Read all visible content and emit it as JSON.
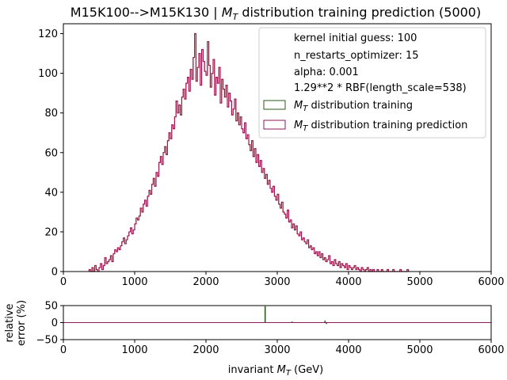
{
  "chart_data": [
    {
      "type": "histogram",
      "title_main": "M15K100-->M15K130 | ",
      "title_var": "M",
      "title_sub": "T",
      "title_tail": " distribution training prediction (5000)",
      "xlim": [
        0,
        6000
      ],
      "ylim": [
        0,
        125
      ],
      "xticks": [
        "0",
        "1000",
        "2000",
        "3000",
        "4000",
        "5000",
        "6000"
      ],
      "yticks": [
        "0",
        "20",
        "40",
        "60",
        "80",
        "100",
        "120"
      ],
      "bin_width": 20,
      "x_start": 360,
      "counts": [
        1,
        0,
        2,
        0,
        3,
        1,
        0,
        2,
        4,
        1,
        3,
        7,
        4,
        5,
        6,
        8,
        5,
        9,
        11,
        10,
        12,
        11,
        13,
        15,
        17,
        14,
        16,
        18,
        20,
        22,
        19,
        21,
        24,
        27,
        26,
        28,
        32,
        30,
        34,
        36,
        33,
        38,
        41,
        39,
        44,
        47,
        43,
        50,
        48,
        55,
        58,
        54,
        60,
        63,
        59,
        66,
        70,
        67,
        74,
        72,
        78,
        86,
        80,
        84,
        79,
        88,
        92,
        87,
        95,
        98,
        91,
        102,
        97,
        108,
        120,
        96,
        103,
        110,
        94,
        112,
        106,
        101,
        99,
        116,
        104,
        93,
        100,
        107,
        89,
        98,
        95,
        103,
        85,
        97,
        92,
        88,
        94,
        83,
        90,
        86,
        79,
        82,
        87,
        76,
        80,
        74,
        78,
        72,
        70,
        75,
        67,
        69,
        64,
        61,
        66,
        58,
        62,
        55,
        59,
        53,
        56,
        50,
        52,
        47,
        49,
        44,
        46,
        42,
        40,
        43,
        38,
        36,
        39,
        34,
        32,
        35,
        30,
        29,
        27,
        31,
        25,
        26,
        22,
        24,
        21,
        23,
        19,
        18,
        20,
        16,
        17,
        15,
        14,
        16,
        12,
        13,
        11,
        12,
        9,
        10,
        8,
        10,
        7,
        9,
        6,
        7,
        5,
        6,
        8,
        4,
        5,
        3,
        6,
        4,
        3,
        5,
        2,
        4,
        3,
        2,
        4,
        1,
        3,
        2,
        1,
        2,
        3,
        1,
        2,
        1,
        0,
        2,
        1,
        0,
        1,
        2,
        0,
        1,
        0,
        1,
        0,
        0,
        1,
        0,
        0,
        1,
        0,
        0,
        0,
        1,
        0,
        0,
        0,
        1,
        0,
        0,
        0,
        0,
        1,
        0,
        0,
        0,
        0,
        1
      ],
      "series": [
        {
          "name_var": "M",
          "name_sub": "T",
          "name_tail": " distribution training",
          "color": "#2f5a1e"
        },
        {
          "name_var": "M",
          "name_sub": "T",
          "name_tail": " distribution training prediction",
          "color": "#8b1a5c"
        }
      ],
      "overlay_color": "#c8102e",
      "legend_notes": [
        "kernel initial guess: 100",
        "n_restarts_optimizer: 15",
        "alpha: 0.001",
        "1.29**2 * RBF(length_scale=538)"
      ],
      "legend_position": "top-right"
    },
    {
      "type": "bar",
      "ylabel_line1": "relative",
      "ylabel_line2": "error (%)",
      "xlabel_pre": "invariant ",
      "xlabel_var": "M",
      "xlabel_sub": "T",
      "xlabel_tail": " (GeV)",
      "xlim": [
        0,
        6000
      ],
      "ylim": [
        -50,
        50
      ],
      "xticks": [
        "0",
        "1000",
        "2000",
        "3000",
        "4000",
        "5000",
        "6000"
      ],
      "yticks": [
        "50",
        "0",
        "−50"
      ],
      "error_bars": [
        {
          "x": 2830,
          "value": 48,
          "color": "#2f5a1e"
        },
        {
          "x": 3210,
          "value": 3,
          "color": "#2f5a1e"
        },
        {
          "x": 3670,
          "value": 6,
          "color": "#2f5a1e"
        },
        {
          "x": 3690,
          "value": -4,
          "color": "#8b1a5c"
        }
      ],
      "zero_line_color": "#8b1a5c"
    }
  ]
}
